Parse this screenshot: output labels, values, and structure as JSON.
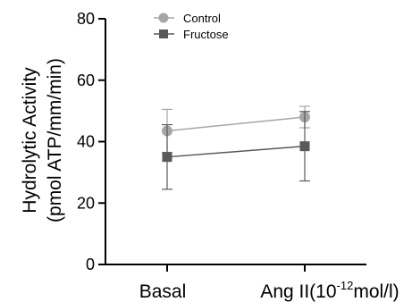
{
  "chart_data": {
    "type": "line",
    "title": "",
    "xlabel": "",
    "ylabel_line1": "Hydrolytic Activity",
    "ylabel_line2": "(pmol ATP/mm/min)",
    "categories": [
      "Basal",
      "Ang II(10-12mol/l)"
    ],
    "category_parts": {
      "basal": "Basal",
      "ang_prefix": "Ang II(10",
      "ang_exp": "-12",
      "ang_suffix": "mol/l)"
    },
    "ylim": [
      0,
      80
    ],
    "yticks": [
      0,
      20,
      40,
      60,
      80
    ],
    "grid": false,
    "legend_position": "top-left",
    "series": [
      {
        "name": "Control",
        "marker": "circle",
        "color": "#a6a6a6",
        "values": [
          43.5,
          48.0
        ],
        "error": [
          7,
          3.5
        ]
      },
      {
        "name": "Fructose",
        "marker": "square",
        "color": "#595959",
        "values": [
          35.0,
          38.5
        ],
        "error": [
          10.5,
          11.3
        ]
      }
    ]
  }
}
